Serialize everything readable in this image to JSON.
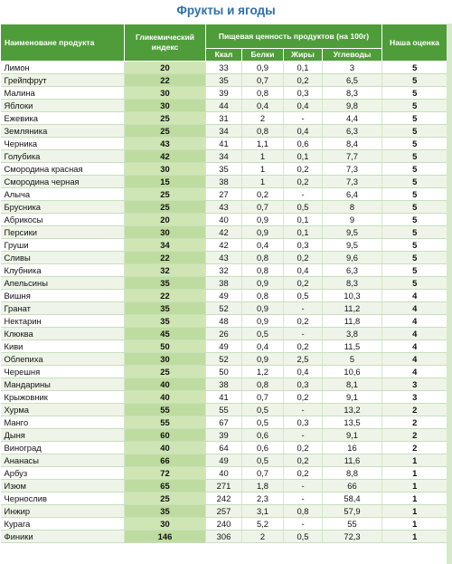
{
  "title": "Фрукты и ягоды",
  "header": {
    "name": "Наименоване продукта",
    "gi": "Гликемический индекс",
    "nutrition": "Пищевая ценность продуктов (на 100г)",
    "kcal": "Ккал",
    "protein": "Белки",
    "fat": "Жиры",
    "carbs": "Углеводы",
    "score": "Наша оценка"
  },
  "rows": [
    {
      "name": "Лимон",
      "gi": "20",
      "kcal": "33",
      "protein": "0,9",
      "fat": "0,1",
      "carbs": "3",
      "score": "5"
    },
    {
      "name": "Грейпфрут",
      "gi": "22",
      "kcal": "35",
      "protein": "0,7",
      "fat": "0,2",
      "carbs": "6,5",
      "score": "5"
    },
    {
      "name": "Малина",
      "gi": "30",
      "kcal": "39",
      "protein": "0,8",
      "fat": "0,3",
      "carbs": "8,3",
      "score": "5"
    },
    {
      "name": "Яблоки",
      "gi": "30",
      "kcal": "44",
      "protein": "0,4",
      "fat": "0,4",
      "carbs": "9,8",
      "score": "5"
    },
    {
      "name": "Ежевика",
      "gi": "25",
      "kcal": "31",
      "protein": "2",
      "fat": "-",
      "carbs": "4,4",
      "score": "5"
    },
    {
      "name": "Земляника",
      "gi": "25",
      "kcal": "34",
      "protein": "0,8",
      "fat": "0,4",
      "carbs": "6,3",
      "score": "5"
    },
    {
      "name": "Черника",
      "gi": "43",
      "kcal": "41",
      "protein": "1,1",
      "fat": "0,6",
      "carbs": "8,4",
      "score": "5"
    },
    {
      "name": "Голубика",
      "gi": "42",
      "kcal": "34",
      "protein": "1",
      "fat": "0,1",
      "carbs": "7,7",
      "score": "5"
    },
    {
      "name": "Смородина красная",
      "gi": "30",
      "kcal": "35",
      "protein": "1",
      "fat": "0,2",
      "carbs": "7,3",
      "score": "5"
    },
    {
      "name": "Смородина черная",
      "gi": "15",
      "kcal": "38",
      "protein": "1",
      "fat": "0,2",
      "carbs": "7,3",
      "score": "5"
    },
    {
      "name": "Алыча",
      "gi": "25",
      "kcal": "27",
      "protein": "0,2",
      "fat": "-",
      "carbs": "6,4",
      "score": "5"
    },
    {
      "name": "Брусника",
      "gi": "25",
      "kcal": "43",
      "protein": "0,7",
      "fat": "0,5",
      "carbs": "8",
      "score": "5"
    },
    {
      "name": "Абрикосы",
      "gi": "20",
      "kcal": "40",
      "protein": "0,9",
      "fat": "0,1",
      "carbs": "9",
      "score": "5"
    },
    {
      "name": "Персики",
      "gi": "30",
      "kcal": "42",
      "protein": "0,9",
      "fat": "0,1",
      "carbs": "9,5",
      "score": "5"
    },
    {
      "name": "Груши",
      "gi": "34",
      "kcal": "42",
      "protein": "0,4",
      "fat": "0,3",
      "carbs": "9,5",
      "score": "5"
    },
    {
      "name": "Сливы",
      "gi": "22",
      "kcal": "43",
      "protein": "0,8",
      "fat": "0,2",
      "carbs": "9,6",
      "score": "5"
    },
    {
      "name": "Клубника",
      "gi": "32",
      "kcal": "32",
      "protein": "0,8",
      "fat": "0,4",
      "carbs": "6,3",
      "score": "5"
    },
    {
      "name": "Апельсины",
      "gi": "35",
      "kcal": "38",
      "protein": "0,9",
      "fat": "0,2",
      "carbs": "8,3",
      "score": "5"
    },
    {
      "name": "Вишня",
      "gi": "22",
      "kcal": "49",
      "protein": "0,8",
      "fat": "0,5",
      "carbs": "10,3",
      "score": "4"
    },
    {
      "name": "Гранат",
      "gi": "35",
      "kcal": "52",
      "protein": "0,9",
      "fat": "-",
      "carbs": "11,2",
      "score": "4"
    },
    {
      "name": "Нектарин",
      "gi": "35",
      "kcal": "48",
      "protein": "0,9",
      "fat": "0,2",
      "carbs": "11,8",
      "score": "4"
    },
    {
      "name": "Клюква",
      "gi": "45",
      "kcal": "26",
      "protein": "0,5",
      "fat": "-",
      "carbs": "3,8",
      "score": "4"
    },
    {
      "name": "Киви",
      "gi": "50",
      "kcal": "49",
      "protein": "0,4",
      "fat": "0,2",
      "carbs": "11,5",
      "score": "4"
    },
    {
      "name": "Облепиха",
      "gi": "30",
      "kcal": "52",
      "protein": "0,9",
      "fat": "2,5",
      "carbs": "5",
      "score": "4"
    },
    {
      "name": "Черешня",
      "gi": "25",
      "kcal": "50",
      "protein": "1,2",
      "fat": "0,4",
      "carbs": "10,6",
      "score": "4"
    },
    {
      "name": "Мандарины",
      "gi": "40",
      "kcal": "38",
      "protein": "0,8",
      "fat": "0,3",
      "carbs": "8,1",
      "score": "3"
    },
    {
      "name": "Крыжовник",
      "gi": "40",
      "kcal": "41",
      "protein": "0,7",
      "fat": "0,2",
      "carbs": "9,1",
      "score": "3"
    },
    {
      "name": "Хурма",
      "gi": "55",
      "kcal": "55",
      "protein": "0,5",
      "fat": "-",
      "carbs": "13,2",
      "score": "2"
    },
    {
      "name": "Манго",
      "gi": "55",
      "kcal": "67",
      "protein": "0,5",
      "fat": "0,3",
      "carbs": "13,5",
      "score": "2"
    },
    {
      "name": "Дыня",
      "gi": "60",
      "kcal": "39",
      "protein": "0,6",
      "fat": "-",
      "carbs": "9,1",
      "score": "2"
    },
    {
      "name": "Виноград",
      "gi": "40",
      "kcal": "64",
      "protein": "0,6",
      "fat": "0,2",
      "carbs": "16",
      "score": "2"
    },
    {
      "name": "Ананасы",
      "gi": "66",
      "kcal": "49",
      "protein": "0,5",
      "fat": "0,2",
      "carbs": "11,6",
      "score": "1"
    },
    {
      "name": "Арбуз",
      "gi": "72",
      "kcal": "40",
      "protein": "0,7",
      "fat": "0,2",
      "carbs": "8,8",
      "score": "1"
    },
    {
      "name": "Изюм",
      "gi": "65",
      "kcal": "271",
      "protein": "1,8",
      "fat": "-",
      "carbs": "66",
      "score": "1"
    },
    {
      "name": "Чернослив",
      "gi": "25",
      "kcal": "242",
      "protein": "2,3",
      "fat": "-",
      "carbs": "58,4",
      "score": "1"
    },
    {
      "name": "Инжир",
      "gi": "35",
      "kcal": "257",
      "protein": "3,1",
      "fat": "0,8",
      "carbs": "57,9",
      "score": "1"
    },
    {
      "name": "Курага",
      "gi": "30",
      "kcal": "240",
      "protein": "5,2",
      "fat": "-",
      "carbs": "55",
      "score": "1"
    },
    {
      "name": "Финики",
      "gi": "146",
      "kcal": "306",
      "protein": "2",
      "fat": "0,5",
      "carbs": "72,3",
      "score": "1"
    }
  ],
  "colors": {
    "header_bg": "#4f9c3a",
    "gi_column_bg": "#cfe6b4",
    "title_text": "#2f6fa8"
  }
}
